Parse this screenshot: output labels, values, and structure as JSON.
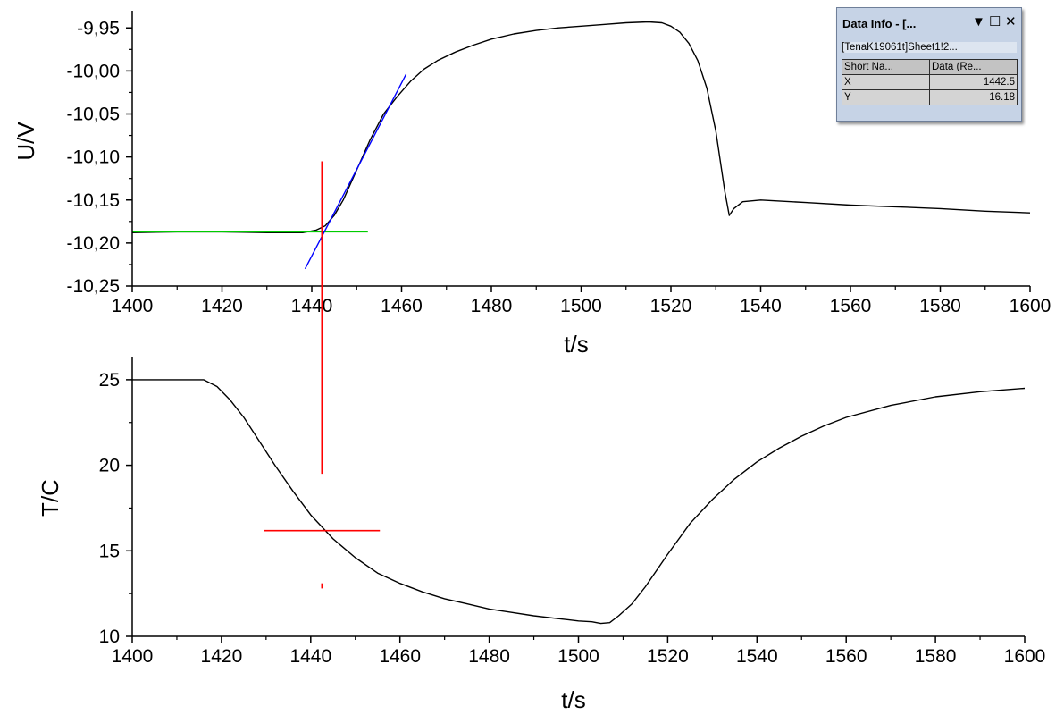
{
  "chart_data": [
    {
      "type": "line",
      "xlabel": "t/s",
      "ylabel": "U/V",
      "xlim": [
        1400,
        1600
      ],
      "ylim": [
        -10.25,
        -9.93
      ],
      "x_ticks": [
        "1400",
        "1420",
        "1440",
        "1460",
        "1480",
        "1500",
        "1520",
        "1540",
        "1560",
        "1580",
        "1600"
      ],
      "y_ticks": [
        "-9,95",
        "-10,00",
        "-10,05",
        "-10,10",
        "-10,15",
        "-10,20",
        "-10,25"
      ],
      "y_tick_values": [
        -9.95,
        -10.0,
        -10.05,
        -10.1,
        -10.15,
        -10.2,
        -10.25
      ],
      "grid": false,
      "series": [
        {
          "color": "#000000",
          "x": [
            1400,
            1410,
            1420,
            1430,
            1438,
            1441,
            1443,
            1445,
            1447,
            1450,
            1453,
            1456,
            1459,
            1462,
            1465,
            1468,
            1472,
            1476,
            1480,
            1485,
            1490,
            1495,
            1500,
            1505,
            1510,
            1515,
            1518,
            1520,
            1522,
            1524,
            1526,
            1528,
            1530,
            1532,
            1533,
            1534,
            1536,
            1540,
            1550,
            1560,
            1570,
            1580,
            1590,
            1600
          ],
          "y": [
            -10.188,
            -10.187,
            -10.187,
            -10.188,
            -10.188,
            -10.185,
            -10.18,
            -10.168,
            -10.15,
            -10.115,
            -10.08,
            -10.05,
            -10.03,
            -10.012,
            -9.998,
            -9.988,
            -9.978,
            -9.97,
            -9.963,
            -9.957,
            -9.953,
            -9.95,
            -9.948,
            -9.946,
            -9.944,
            -9.943,
            -9.944,
            -9.948,
            -9.955,
            -9.968,
            -9.988,
            -10.02,
            -10.07,
            -10.14,
            -10.168,
            -10.16,
            -10.152,
            -10.15,
            -10.153,
            -10.156,
            -10.158,
            -10.16,
            -10.163,
            -10.165
          ]
        },
        {
          "color": "#00cc00",
          "x": [
            1400,
            1452.5
          ],
          "y": [
            -10.187,
            -10.187
          ]
        },
        {
          "color": "#0000ff",
          "x": [
            1438.5,
            1461
          ],
          "y": [
            -10.23,
            -10.004
          ]
        }
      ]
    },
    {
      "type": "line",
      "xlabel": "t/s",
      "ylabel": "T/C",
      "xlim": [
        1400,
        1600
      ],
      "ylim": [
        10,
        26.3
      ],
      "x_ticks": [
        "1400",
        "1420",
        "1440",
        "1460",
        "1480",
        "1500",
        "1520",
        "1540",
        "1560",
        "1580",
        "1600"
      ],
      "y_ticks": [
        "25",
        "20",
        "15",
        "10"
      ],
      "y_tick_values": [
        25,
        20,
        15,
        10
      ],
      "grid": false,
      "series": [
        {
          "color": "#000000",
          "x": [
            1400,
            1410,
            1416,
            1419,
            1422,
            1425,
            1428,
            1432,
            1436,
            1440,
            1445,
            1450,
            1455,
            1460,
            1465,
            1470,
            1475,
            1480,
            1485,
            1490,
            1495,
            1500,
            1503,
            1505,
            1507,
            1509,
            1512,
            1515,
            1520,
            1525,
            1530,
            1535,
            1540,
            1545,
            1550,
            1555,
            1560,
            1570,
            1580,
            1590,
            1600
          ],
          "y": [
            25.0,
            25.0,
            25.0,
            24.6,
            23.8,
            22.8,
            21.6,
            20.0,
            18.5,
            17.1,
            15.7,
            14.6,
            13.7,
            13.1,
            12.6,
            12.2,
            11.9,
            11.6,
            11.4,
            11.2,
            11.05,
            10.9,
            10.85,
            10.75,
            10.8,
            11.2,
            11.9,
            12.9,
            14.8,
            16.6,
            18.0,
            19.2,
            20.2,
            21.0,
            21.7,
            22.3,
            22.8,
            23.5,
            24.0,
            24.3,
            24.5
          ]
        }
      ]
    }
  ],
  "crosshair": {
    "x": 1442.5,
    "y": 16.18,
    "color": "#ff0000"
  },
  "data_info": {
    "title": "Data Info - [...",
    "menu_icon": "dropdown-arrow-icon",
    "menu_glyph": "▼",
    "maximize_icon": "maximize-icon",
    "maximize_glyph": "☐",
    "close_icon": "close-icon",
    "close_glyph": "✕",
    "subtitle": "[TenaK19061t]Sheet1!2...",
    "col1_header": "Short Na...",
    "col2_header": "Data (Re...",
    "rows": [
      {
        "name": "X",
        "value": "1442.5"
      },
      {
        "name": "Y",
        "value": "16.18"
      }
    ]
  }
}
